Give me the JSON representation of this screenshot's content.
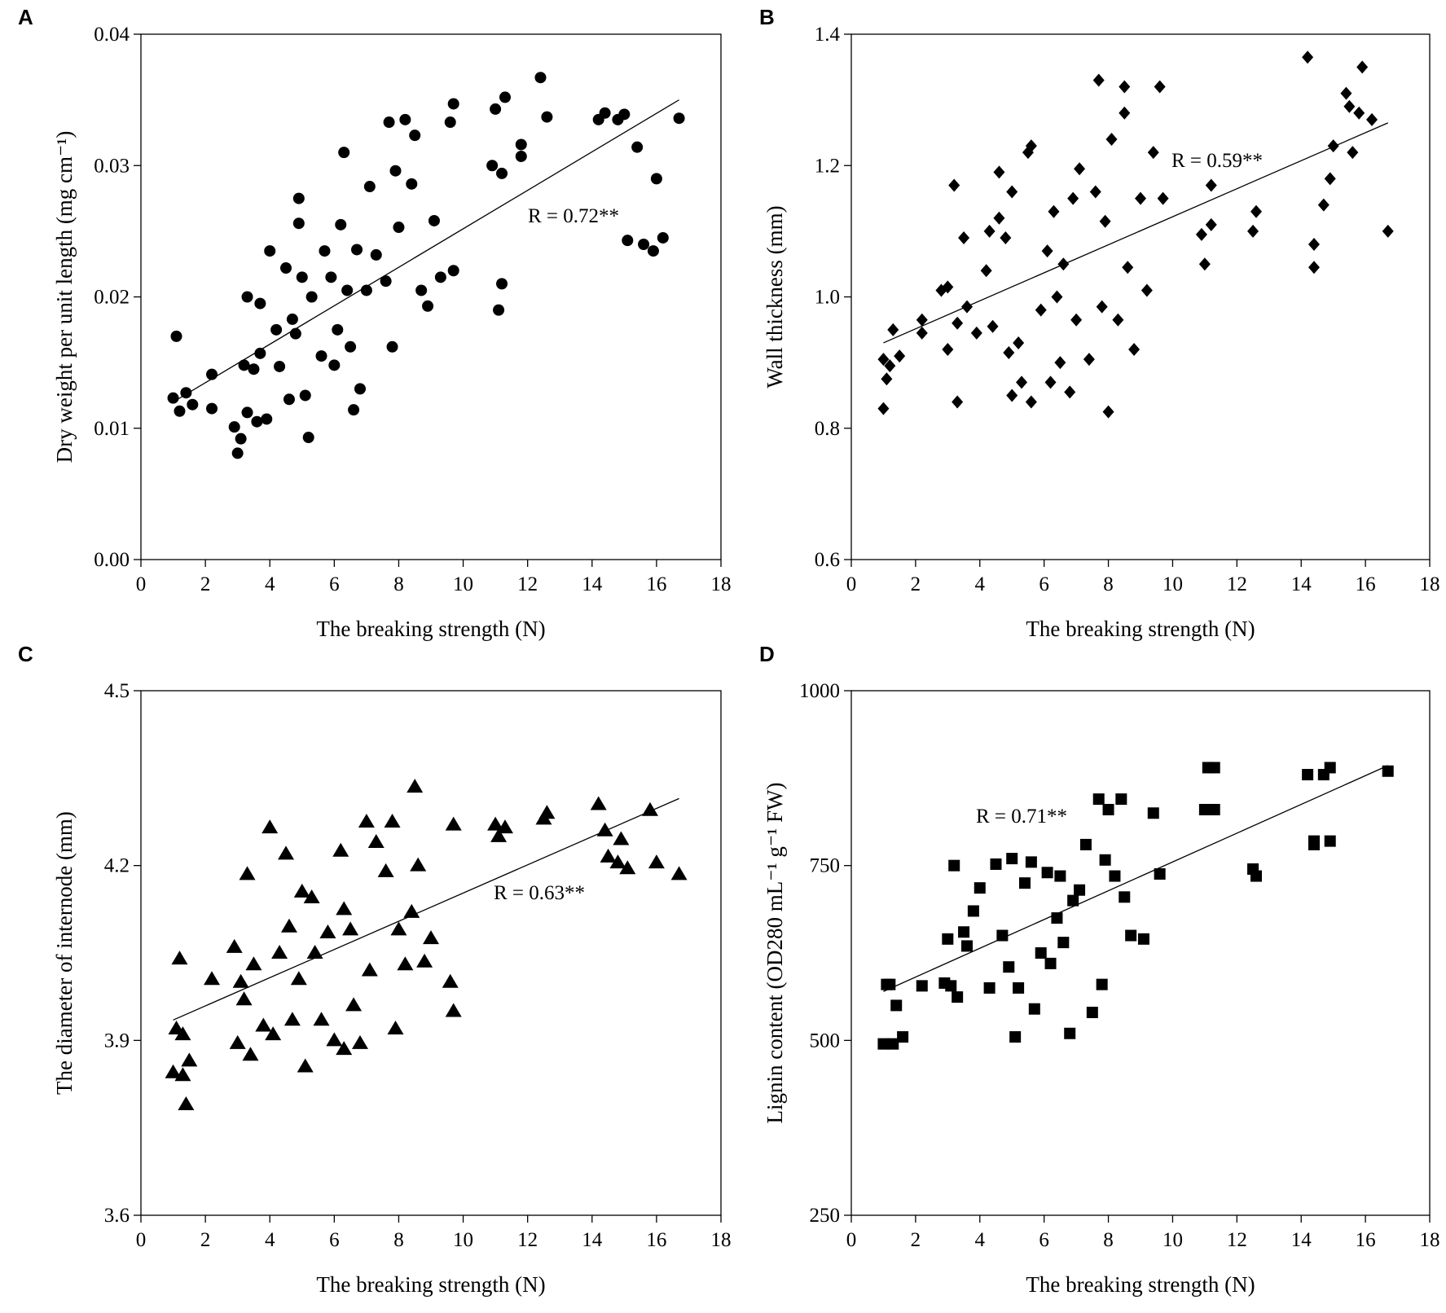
{
  "chart_data": [
    {
      "type": "scatter",
      "panel_label": "A",
      "xlabel": "The breaking strength (N)",
      "ylabel": "Dry weight per unit length (mg cm⁻¹)",
      "annotation": "R = 0.72**",
      "annotation_color": "#e0201b",
      "marker": "circle",
      "color": "#000000",
      "xlim": [
        0,
        18
      ],
      "xticks": [
        0,
        2,
        4,
        6,
        8,
        10,
        12,
        14,
        16,
        18
      ],
      "ylim": [
        0,
        0.04
      ],
      "yticks": [
        {
          "value": 0,
          "label": "0.00"
        },
        0.01,
        0.02,
        0.03,
        0.04
      ],
      "x": [
        1.0,
        1.1,
        1.2,
        1.4,
        1.6,
        2.2,
        2.2,
        2.9,
        3.0,
        3.1,
        3.2,
        3.3,
        3.3,
        3.5,
        3.6,
        3.7,
        3.7,
        3.9,
        4.0,
        4.2,
        4.3,
        4.5,
        4.6,
        4.7,
        4.8,
        4.9,
        4.9,
        5.0,
        5.1,
        5.2,
        5.3,
        5.6,
        5.7,
        5.9,
        6.0,
        6.1,
        6.2,
        6.3,
        6.4,
        6.5,
        6.6,
        6.7,
        6.8,
        7.0,
        7.1,
        7.3,
        7.6,
        7.7,
        7.8,
        7.9,
        8.0,
        8.2,
        8.4,
        8.5,
        8.7,
        8.9,
        9.1,
        9.3,
        9.6,
        9.7,
        9.7,
        10.9,
        11.0,
        11.1,
        11.2,
        11.2,
        11.3,
        11.8,
        11.8,
        12.4,
        12.6,
        14.2,
        14.4,
        14.8,
        15.0,
        15.1,
        15.4,
        15.6,
        15.9,
        16.0,
        16.2,
        16.7
      ],
      "values": [
        0.0123,
        0.017,
        0.0113,
        0.0127,
        0.0118,
        0.0141,
        0.0115,
        0.0101,
        0.0081,
        0.0092,
        0.0148,
        0.0112,
        0.02,
        0.0145,
        0.0105,
        0.0195,
        0.0157,
        0.0107,
        0.0235,
        0.0175,
        0.0147,
        0.0222,
        0.0122,
        0.0183,
        0.0172,
        0.0275,
        0.0256,
        0.0215,
        0.0125,
        0.0093,
        0.02,
        0.0155,
        0.0235,
        0.0215,
        0.0148,
        0.0175,
        0.0255,
        0.031,
        0.0205,
        0.0162,
        0.0114,
        0.0236,
        0.013,
        0.0205,
        0.0284,
        0.0232,
        0.0212,
        0.0333,
        0.0162,
        0.0296,
        0.0253,
        0.0335,
        0.0286,
        0.0323,
        0.0205,
        0.0193,
        0.0258,
        0.0215,
        0.0333,
        0.0347,
        0.022,
        0.03,
        0.0343,
        0.019,
        0.0294,
        0.021,
        0.0352,
        0.0316,
        0.0307,
        0.0367,
        0.0337,
        0.0335,
        0.034,
        0.0335,
        0.0339,
        0.0243,
        0.0314,
        0.024,
        0.0235,
        0.029,
        0.0245,
        0.0336
      ],
      "trendline": {
        "x": [
          1.0,
          16.7
        ],
        "values": [
          0.012,
          0.035
        ]
      }
    },
    {
      "type": "scatter",
      "panel_label": "B",
      "xlabel": "The breaking strength (N)",
      "ylabel": "Wall thickness (mm)",
      "annotation": "R = 0.59**",
      "annotation_color": "#e0201b",
      "marker": "diamond",
      "color": "#000000",
      "xlim": [
        0,
        18
      ],
      "xticks": [
        0,
        2,
        4,
        6,
        8,
        10,
        12,
        14,
        16,
        18
      ],
      "ylim": [
        0.6,
        1.4
      ],
      "yticks": [
        0.6,
        0.8,
        {
          "value": 1.0,
          "label": "1.0"
        },
        1.2,
        1.4
      ],
      "x": [
        1.0,
        1.0,
        1.1,
        1.2,
        1.3,
        1.5,
        2.2,
        2.2,
        2.8,
        3.0,
        3.0,
        3.2,
        3.3,
        3.3,
        3.5,
        3.6,
        3.9,
        4.2,
        4.3,
        4.4,
        4.6,
        4.6,
        4.8,
        4.9,
        5.0,
        5.0,
        5.2,
        5.3,
        5.5,
        5.6,
        5.6,
        5.9,
        6.1,
        6.2,
        6.3,
        6.4,
        6.5,
        6.6,
        6.8,
        6.9,
        7.0,
        7.1,
        7.4,
        7.6,
        7.7,
        7.8,
        7.9,
        8.0,
        8.1,
        8.3,
        8.5,
        8.5,
        8.6,
        8.8,
        9.0,
        9.2,
        9.4,
        9.6,
        9.7,
        10.9,
        11.0,
        11.2,
        11.2,
        12.5,
        12.6,
        14.2,
        14.4,
        14.4,
        14.7,
        14.9,
        15.0,
        15.4,
        15.5,
        15.6,
        15.8,
        15.9,
        16.2,
        16.7
      ],
      "values": [
        0.905,
        0.83,
        0.875,
        0.895,
        0.95,
        0.91,
        0.965,
        0.945,
        1.01,
        0.92,
        1.015,
        1.17,
        0.84,
        0.96,
        1.09,
        0.985,
        0.945,
        1.04,
        1.1,
        0.955,
        1.19,
        1.12,
        1.09,
        0.915,
        1.16,
        0.85,
        0.93,
        0.87,
        1.22,
        1.23,
        0.84,
        0.98,
        1.07,
        0.87,
        1.13,
        1.0,
        0.9,
        1.05,
        0.855,
        1.15,
        0.965,
        1.195,
        0.905,
        1.16,
        1.33,
        0.985,
        1.115,
        0.825,
        1.24,
        0.965,
        1.32,
        1.28,
        1.045,
        0.92,
        1.15,
        1.01,
        1.22,
        1.32,
        1.15,
        1.095,
        1.05,
        1.17,
        1.11,
        1.1,
        1.13,
        1.365,
        1.08,
        1.045,
        1.14,
        1.18,
        1.23,
        1.31,
        1.29,
        1.22,
        1.28,
        1.35,
        1.27,
        1.1
      ],
      "trendline": {
        "x": [
          1.0,
          16.7
        ],
        "values": [
          0.93,
          1.265
        ]
      }
    },
    {
      "type": "scatter",
      "panel_label": "C",
      "xlabel": "The breaking strength (N)",
      "ylabel": "The diameter of internode (mm)",
      "annotation": "R = 0.63**",
      "annotation_color": "#e0201b",
      "marker": "triangle",
      "color": "#000000",
      "xlim": [
        0,
        18
      ],
      "xticks": [
        0,
        2,
        4,
        6,
        8,
        10,
        12,
        14,
        16,
        18
      ],
      "ylim": [
        3.6,
        4.5
      ],
      "yticks": [
        3.6,
        3.9,
        4.2,
        4.5
      ],
      "x": [
        1.0,
        1.1,
        1.2,
        1.3,
        1.3,
        1.4,
        1.5,
        2.2,
        2.9,
        3.0,
        3.1,
        3.2,
        3.3,
        3.4,
        3.5,
        3.8,
        4.0,
        4.1,
        4.3,
        4.5,
        4.6,
        4.7,
        4.9,
        5.0,
        5.1,
        5.3,
        5.4,
        5.6,
        5.8,
        6.0,
        6.2,
        6.3,
        6.3,
        6.5,
        6.6,
        6.8,
        7.0,
        7.1,
        7.3,
        7.6,
        7.8,
        7.9,
        8.0,
        8.2,
        8.4,
        8.5,
        8.6,
        8.8,
        9.0,
        9.6,
        9.7,
        9.7,
        11.0,
        11.1,
        11.3,
        12.5,
        12.6,
        14.2,
        14.4,
        14.5,
        14.8,
        14.9,
        15.1,
        15.8,
        16.0,
        16.7
      ],
      "values": [
        3.845,
        3.92,
        4.04,
        3.91,
        3.84,
        3.79,
        3.865,
        4.005,
        4.06,
        3.895,
        4.0,
        3.97,
        4.185,
        3.875,
        4.03,
        3.925,
        4.265,
        3.91,
        4.05,
        4.22,
        4.095,
        3.935,
        4.005,
        4.155,
        3.855,
        4.145,
        4.05,
        3.935,
        4.085,
        3.9,
        4.225,
        4.125,
        3.885,
        4.09,
        3.96,
        3.895,
        4.275,
        4.02,
        4.24,
        4.19,
        4.275,
        3.92,
        4.09,
        4.03,
        4.12,
        4.335,
        4.2,
        4.035,
        4.075,
        4.0,
        4.27,
        3.95,
        4.27,
        4.25,
        4.265,
        4.28,
        4.29,
        4.305,
        4.26,
        4.215,
        4.205,
        4.245,
        4.195,
        4.295,
        4.205,
        4.185
      ],
      "trendline": {
        "x": [
          1.0,
          16.7
        ],
        "values": [
          3.935,
          4.315
        ]
      }
    },
    {
      "type": "scatter",
      "panel_label": "D",
      "xlabel": "The breaking strength (N)",
      "ylabel": "Lignin content (OD280 mL⁻¹ g⁻¹ FW)",
      "annotation": "R = 0.71**",
      "annotation_color": "#e0201b",
      "marker": "square",
      "color": "#000000",
      "xlim": [
        0,
        18
      ],
      "xticks": [
        0,
        2,
        4,
        6,
        8,
        10,
        12,
        14,
        16,
        18
      ],
      "ylim": [
        250,
        1000
      ],
      "yticks": [
        250,
        500,
        750,
        1000
      ],
      "x": [
        1.0,
        1.1,
        1.2,
        1.3,
        1.4,
        1.6,
        2.2,
        2.9,
        3.0,
        3.1,
        3.2,
        3.3,
        3.5,
        3.6,
        3.8,
        4.0,
        4.3,
        4.5,
        4.7,
        4.9,
        5.0,
        5.1,
        5.2,
        5.4,
        5.6,
        5.7,
        5.9,
        6.1,
        6.2,
        6.4,
        6.5,
        6.6,
        6.8,
        6.9,
        7.1,
        7.3,
        7.5,
        7.7,
        7.8,
        7.9,
        8.0,
        8.2,
        8.4,
        8.5,
        8.7,
        9.1,
        9.4,
        9.6,
        11.0,
        11.1,
        11.3,
        11.3,
        12.5,
        12.6,
        14.2,
        14.4,
        14.4,
        14.7,
        14.9,
        14.9,
        16.7
      ],
      "values": [
        495,
        580,
        580,
        495,
        550,
        505,
        578,
        582,
        645,
        578,
        750,
        562,
        655,
        635,
        685,
        718,
        575,
        752,
        650,
        605,
        760,
        505,
        575,
        725,
        755,
        545,
        625,
        740,
        610,
        675,
        735,
        640,
        510,
        700,
        715,
        780,
        540,
        845,
        580,
        758,
        830,
        735,
        845,
        705,
        650,
        645,
        825,
        738,
        830,
        890,
        890,
        830,
        745,
        735,
        880,
        780,
        785,
        880,
        890,
        785,
        885
      ],
      "trendline": {
        "x": [
          1.0,
          16.7
        ],
        "values": [
          570,
          893
        ]
      }
    }
  ]
}
